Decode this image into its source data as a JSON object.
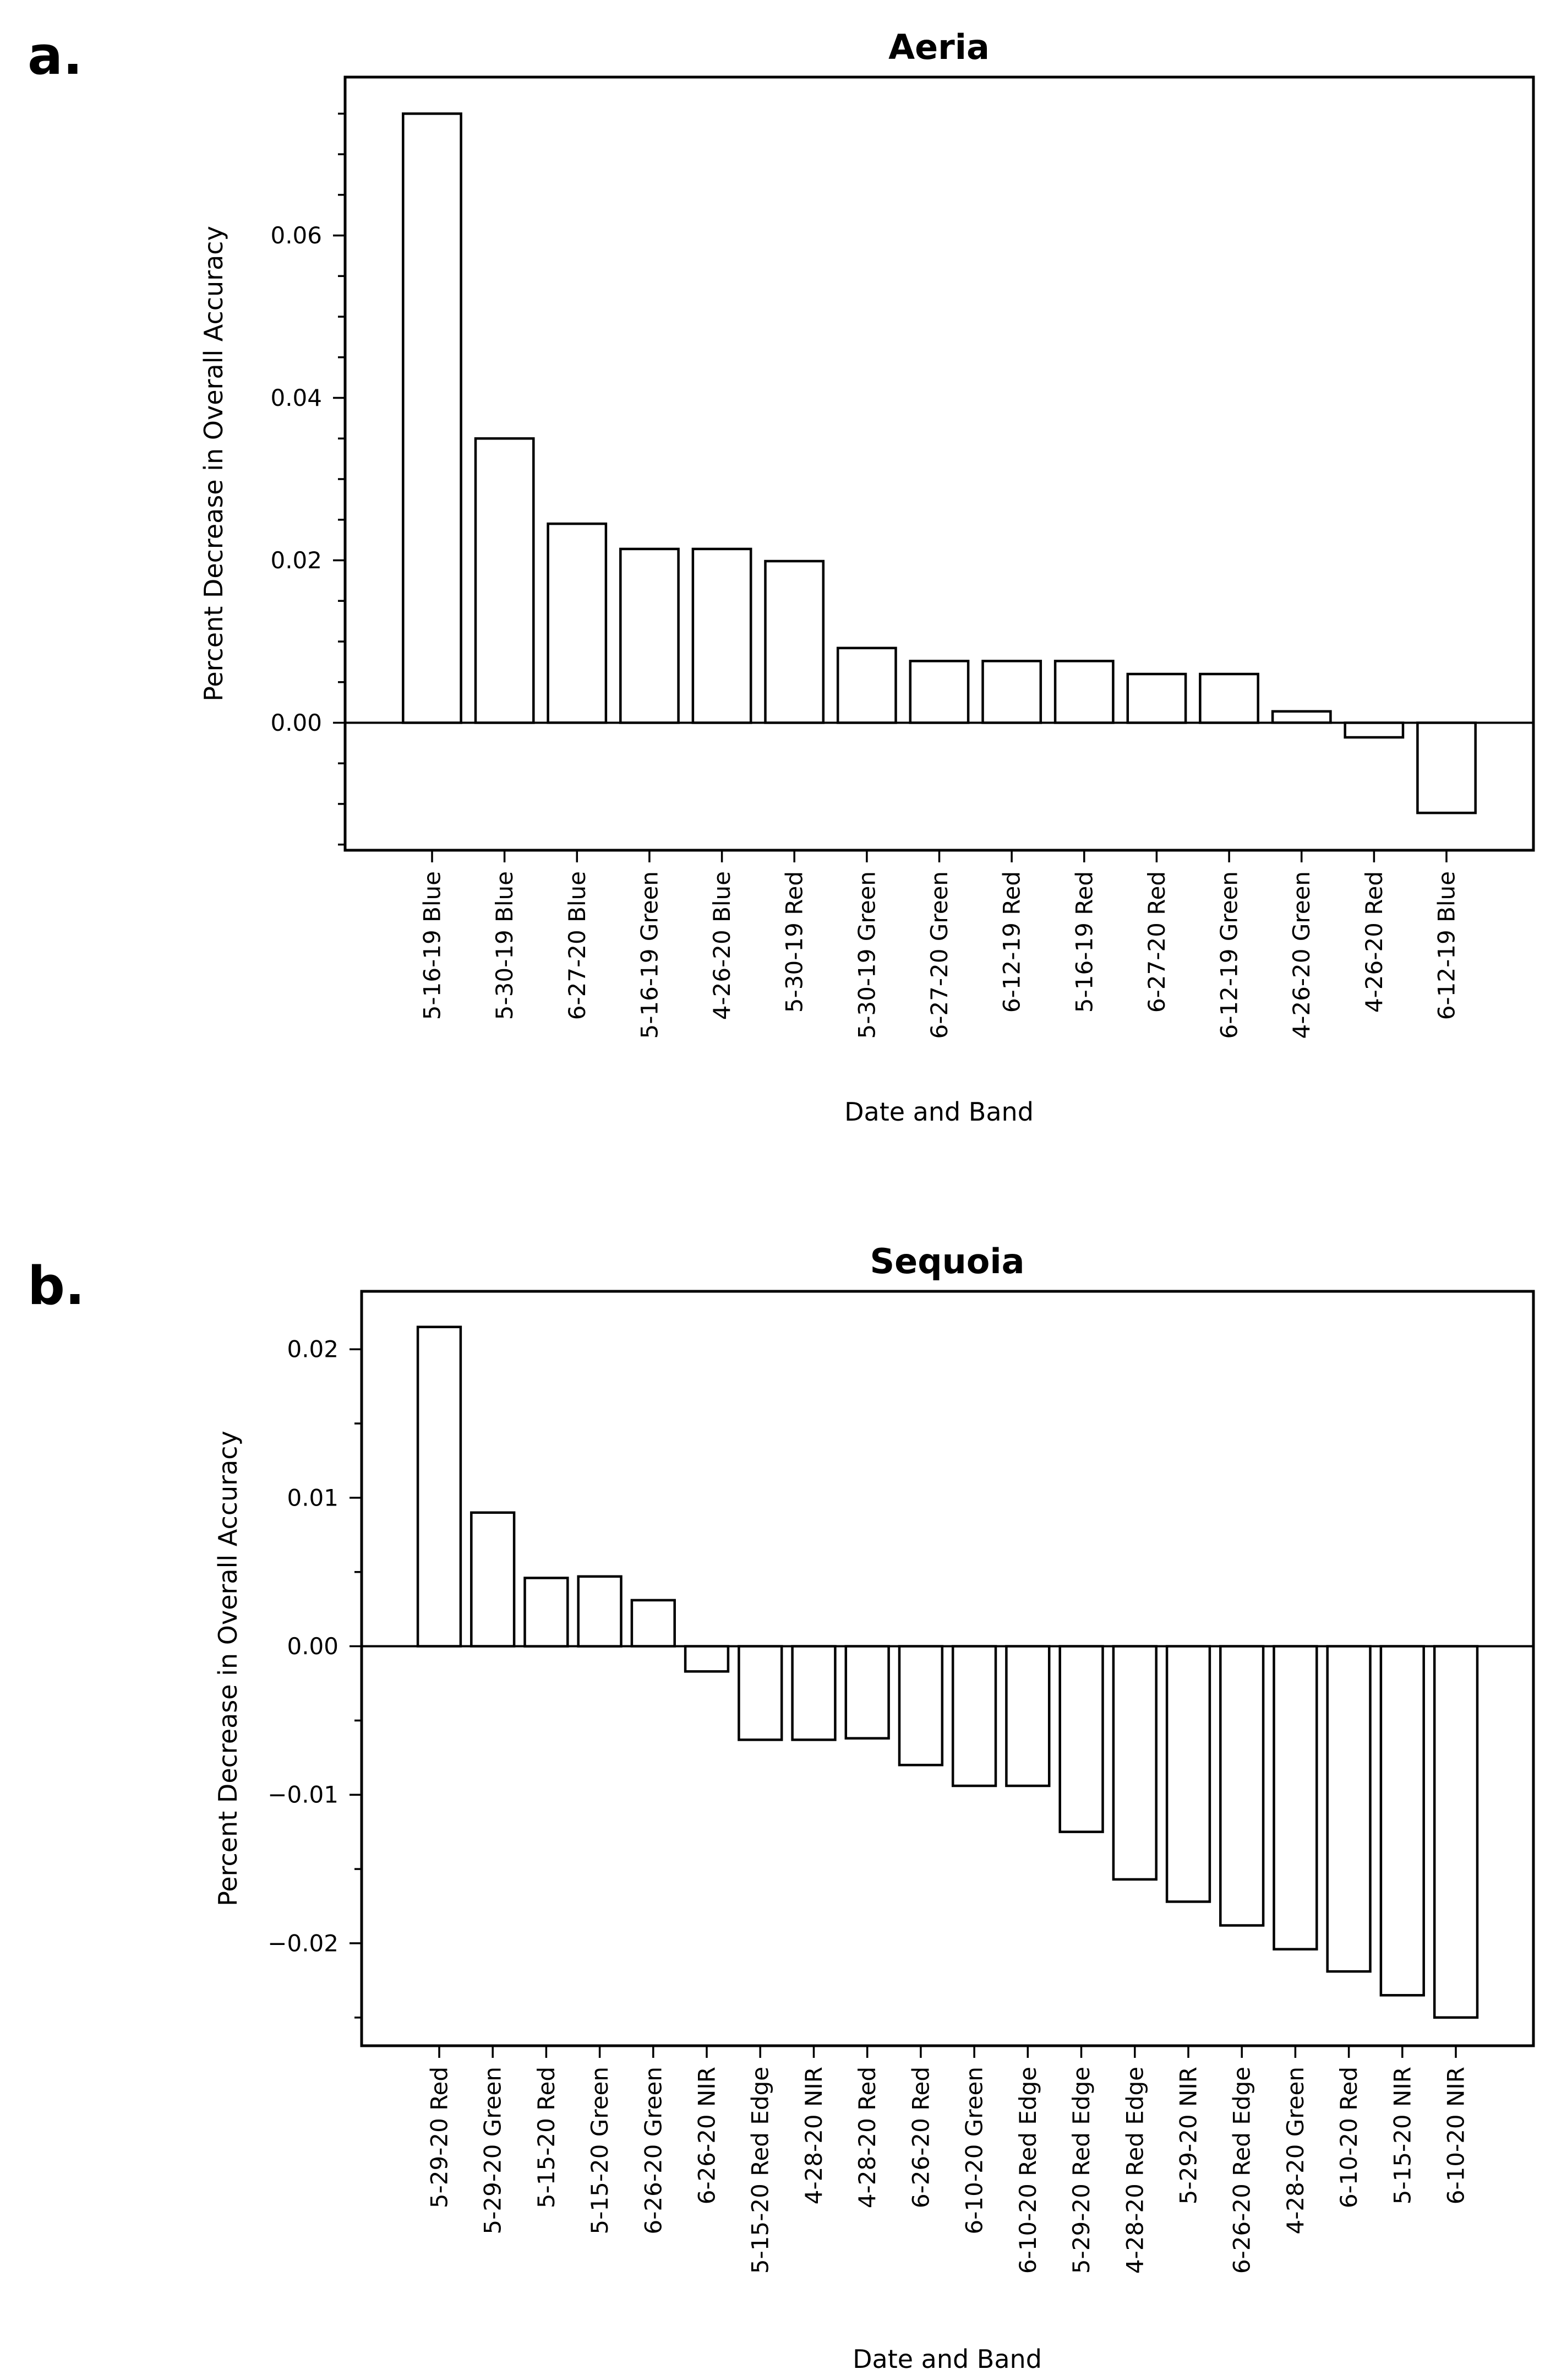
{
  "figure": {
    "background": "#ffffff",
    "text_color": "#000000"
  },
  "chart_data": [
    {
      "type": "bar",
      "panel_letter": "a.",
      "title": "Aeria",
      "xlabel": "Date and Band",
      "ylabel": "Percent Decrease in Overall Accuracy",
      "categories": [
        "5-16-19 Blue",
        "5-30-19 Blue",
        "6-27-20 Blue",
        "5-16-19 Green",
        "4-26-20 Blue",
        "5-30-19 Red",
        "5-30-19 Green",
        "6-27-20 Green",
        "6-12-19 Red",
        "5-16-19 Red",
        "6-27-20 Red",
        "6-12-19 Green",
        "4-26-20 Green",
        "4-26-20 Red",
        "6-12-19 Blue"
      ],
      "values": [
        0.075,
        0.035,
        0.0245,
        0.0214,
        0.0214,
        0.0199,
        0.0092,
        0.0076,
        0.0076,
        0.0076,
        0.006,
        0.006,
        0.0014,
        -0.0018,
        -0.0111
      ],
      "ylim": [
        -0.0157,
        0.0795
      ],
      "ytick_values": [
        0.0,
        0.02,
        0.04,
        0.06
      ],
      "ytick_labels": [
        "0.00",
        "0.02",
        "0.04",
        "0.06"
      ],
      "minor_tick_step": 0.005,
      "bar_fill": "#ffffff",
      "bar_edge": "#000000",
      "grid": false,
      "legend": null
    },
    {
      "type": "bar",
      "panel_letter": "b.",
      "title": "Sequoia",
      "xlabel": "Date and Band",
      "ylabel": "Percent Decrease in Overall Accuracy",
      "categories": [
        "5-29-20 Red",
        "5-29-20 Green",
        "5-15-20 Red",
        "5-15-20 Green",
        "6-26-20 Green",
        "6-26-20 NIR",
        "5-15-20 Red Edge",
        "4-28-20 NIR",
        "4-28-20 Red",
        "6-26-20 Red",
        "6-10-20 Green",
        "6-10-20 Red Edge",
        "5-29-20 Red Edge",
        "4-28-20 Red Edge",
        "5-29-20 NIR",
        "6-26-20 Red Edge",
        "4-28-20 Green",
        "6-10-20 Red",
        "5-15-20 NIR",
        "6-10-20 NIR"
      ],
      "values": [
        0.0215,
        0.009,
        0.0046,
        0.0047,
        0.0031,
        -0.0017,
        -0.0063,
        -0.0063,
        -0.0062,
        -0.008,
        -0.0094,
        -0.0094,
        -0.0125,
        -0.0157,
        -0.0172,
        -0.0188,
        -0.0204,
        -0.0219,
        -0.0235,
        -0.025
      ],
      "ylim": [
        -0.0269,
        0.0239
      ],
      "ytick_values": [
        -0.02,
        -0.01,
        0.0,
        0.01,
        0.02
      ],
      "ytick_labels": [
        "−0.02",
        "−0.01",
        "0.00",
        "0.01",
        "0.02"
      ],
      "minor_tick_step": 0.005,
      "bar_fill": "#ffffff",
      "bar_edge": "#000000",
      "grid": false,
      "legend": null
    }
  ]
}
